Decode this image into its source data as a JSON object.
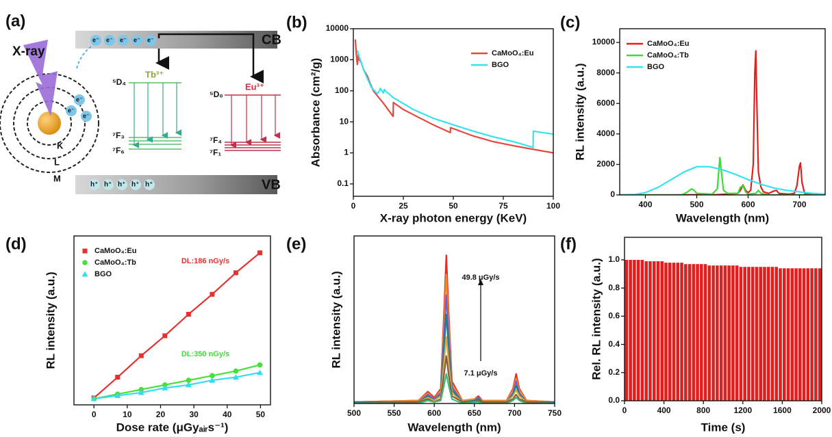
{
  "diagram": {
    "panel_label": "(a)",
    "xray_label": "X-ray",
    "cb_label": "CB",
    "vb_label": "VB",
    "electrons": [
      "e⁻",
      "e⁻",
      "e⁻",
      "e⁻",
      "e⁻"
    ],
    "atom_electrons": [
      "e⁻",
      "e⁻",
      "e⁻"
    ],
    "holes": [
      "h⁺",
      "h⁺",
      "h⁺",
      "h⁺",
      "h⁺"
    ],
    "tb_label": "Tb³⁺",
    "eu_label": "Eu³⁺",
    "tb_levels": [
      "⁵D₄",
      "⁷F₃",
      "⁷F₆"
    ],
    "eu_levels": [
      "⁵D₀",
      "⁷F₄",
      "⁷F₁"
    ],
    "shells": [
      "K",
      "L",
      "M"
    ]
  },
  "chart_data": [
    {
      "type": "line",
      "panel_label": "(b)",
      "x_label": "X-ray photon energy (KeV)",
      "y_label": "Absorbance (cm²/g)",
      "log_y": true,
      "xlim": [
        0,
        100
      ],
      "xticks": [
        0,
        25,
        50,
        75,
        100
      ],
      "ylim": [
        0.04,
        10000
      ],
      "yticks": [
        0.1,
        1,
        10,
        100,
        1000,
        10000
      ],
      "legend": "upper right",
      "series": [
        {
          "name": "CaMoO₄:Eu",
          "color": "#e5483f",
          "x": [
            1,
            1.5,
            2,
            2.5,
            3,
            4,
            5,
            7,
            8,
            10,
            15,
            19.9,
            20,
            25,
            30,
            40,
            48.5,
            48.6,
            60,
            70,
            80,
            90,
            100
          ],
          "values": [
            4500,
            1500,
            700,
            1500,
            1000,
            800,
            500,
            300,
            200,
            100,
            40,
            15,
            42,
            25,
            17,
            8,
            4.5,
            6.5,
            3.5,
            2.3,
            1.7,
            1.3,
            1.0
          ]
        },
        {
          "name": "BGO",
          "color": "#35e2ef",
          "x": [
            2,
            3,
            4,
            5,
            7,
            9,
            12,
            13,
            13.5,
            15,
            15.5,
            16,
            20,
            30,
            40,
            50,
            60,
            70,
            80,
            89.9,
            90,
            100
          ],
          "values": [
            2000,
            1200,
            800,
            500,
            250,
            130,
            80,
            100,
            120,
            85,
            110,
            100,
            60,
            25,
            13,
            8,
            5,
            3.3,
            2.3,
            1.5,
            5,
            4
          ]
        }
      ]
    },
    {
      "type": "line",
      "panel_label": "(c)",
      "x_label": "Wavelength (nm)",
      "y_label": "RL intensity (a.u.)",
      "xlim": [
        350,
        750
      ],
      "xticks": [
        400,
        500,
        600,
        700
      ],
      "ylim": [
        0,
        10900
      ],
      "yticks": [
        0,
        2000,
        4000,
        6000,
        8000,
        10000
      ],
      "legend": "upper left",
      "series": [
        {
          "name": "CaMoO₄:Eu",
          "color": "#e01f1f",
          "x": [
            350,
            380,
            400,
            450,
            500,
            540,
            560,
            580,
            585,
            590,
            595,
            600,
            605,
            610,
            613,
            615,
            617,
            620,
            625,
            630,
            640,
            650,
            655,
            660,
            680,
            690,
            695,
            700,
            702,
            705,
            710,
            750
          ],
          "values": [
            0,
            0,
            0,
            0,
            10,
            20,
            50,
            100,
            300,
            650,
            300,
            150,
            300,
            2000,
            8000,
            9450,
            6000,
            1500,
            500,
            200,
            100,
            250,
            300,
            100,
            50,
            100,
            600,
            1900,
            2100,
            800,
            100,
            0
          ]
        },
        {
          "name": "CaMoO₄:Tb",
          "color": "#3fd93a",
          "x": [
            350,
            470,
            480,
            490,
            495,
            500,
            530,
            540,
            545,
            548,
            552,
            560,
            580,
            585,
            590,
            595,
            600,
            615,
            620,
            625,
            640,
            750
          ],
          "values": [
            0,
            0,
            150,
            400,
            300,
            100,
            50,
            400,
            2450,
            1500,
            300,
            100,
            100,
            500,
            600,
            200,
            50,
            100,
            300,
            100,
            0,
            0
          ]
        },
        {
          "name": "BGO",
          "color": "#35e2ef",
          "x": [
            350,
            380,
            400,
            425,
            450,
            475,
            500,
            525,
            550,
            575,
            600,
            625,
            650,
            675,
            700,
            725,
            750
          ],
          "values": [
            0,
            30,
            150,
            500,
            1000,
            1500,
            1850,
            1850,
            1650,
            1350,
            1000,
            700,
            450,
            300,
            200,
            100,
            50
          ]
        }
      ]
    },
    {
      "type": "line",
      "panel_label": "(d)",
      "x_label": "Dose rate (μGyₐᵢᵣs⁻¹)",
      "y_label": "RL intensity (a.u.)",
      "xlim": [
        -6,
        53
      ],
      "xticks": [
        0,
        10,
        20,
        30,
        40,
        50
      ],
      "ylim": [
        0,
        1.1
      ],
      "legend": "upper left",
      "x": [
        0,
        7.1,
        14.2,
        21.3,
        28.4,
        35.5,
        42.6,
        49.8
      ],
      "series": [
        {
          "name": "CaMoO₄:Eu",
          "color": "#e5312f",
          "marker": "square",
          "values": [
            0.045,
            0.18,
            0.32,
            0.45,
            0.59,
            0.72,
            0.86,
            0.99
          ]
        },
        {
          "name": "CaMoO₄:Tb",
          "color": "#45e03a",
          "marker": "circle",
          "values": [
            0.04,
            0.07,
            0.1,
            0.13,
            0.16,
            0.19,
            0.22,
            0.26
          ]
        },
        {
          "name": "BGO",
          "color": "#35dcef",
          "marker": "triangle",
          "values": [
            0.04,
            0.06,
            0.08,
            0.11,
            0.13,
            0.16,
            0.18,
            0.21
          ]
        }
      ],
      "annotations": [
        {
          "text": "DL:186 nGy/s",
          "color": "#e5312f"
        },
        {
          "text": "DL:350 nGy/s",
          "color": "#45d83a"
        }
      ]
    },
    {
      "type": "line",
      "panel_label": "(e)",
      "x_label": "Wavelength (nm)",
      "y_label": "RL intensity (a.u.)",
      "xlim": [
        500,
        750
      ],
      "xticks": [
        500,
        550,
        600,
        650,
        700,
        750
      ],
      "ylim": [
        0,
        1.13
      ],
      "x": [
        500,
        580,
        592,
        600,
        608,
        612,
        615,
        618,
        622,
        635,
        650,
        655,
        660,
        690,
        698,
        702,
        706,
        715,
        750
      ],
      "series": [
        {
          "color": "#e0302a",
          "values": [
            0.01,
            0.02,
            0.08,
            0.04,
            0.1,
            0.6,
            1.0,
            0.6,
            0.15,
            0.02,
            0.03,
            0.05,
            0.02,
            0.02,
            0.1,
            0.2,
            0.1,
            0.02,
            0.01
          ]
        },
        {
          "color": "#f08a2a",
          "values": [
            0.01,
            0.02,
            0.07,
            0.03,
            0.09,
            0.52,
            0.87,
            0.52,
            0.13,
            0.02,
            0.03,
            0.04,
            0.02,
            0.02,
            0.09,
            0.17,
            0.09,
            0.02,
            0.01
          ]
        },
        {
          "color": "#7a5cc8",
          "values": [
            0.01,
            0.01,
            0.06,
            0.03,
            0.07,
            0.44,
            0.73,
            0.44,
            0.11,
            0.01,
            0.02,
            0.04,
            0.01,
            0.01,
            0.07,
            0.15,
            0.07,
            0.01,
            0.01
          ]
        },
        {
          "color": "#1f7f8a",
          "values": [
            0.01,
            0.01,
            0.05,
            0.02,
            0.06,
            0.36,
            0.6,
            0.36,
            0.09,
            0.01,
            0.02,
            0.03,
            0.01,
            0.01,
            0.06,
            0.12,
            0.06,
            0.01,
            0.01
          ]
        },
        {
          "color": "#d9a84a",
          "values": [
            0,
            0.01,
            0.04,
            0.02,
            0.05,
            0.27,
            0.45,
            0.27,
            0.07,
            0.01,
            0.01,
            0.02,
            0.01,
            0.01,
            0.05,
            0.09,
            0.05,
            0.01,
            0
          ]
        },
        {
          "color": "#8a5a3a",
          "values": [
            0,
            0.01,
            0.03,
            0.01,
            0.03,
            0.19,
            0.32,
            0.19,
            0.05,
            0.01,
            0.01,
            0.02,
            0.01,
            0.01,
            0.03,
            0.06,
            0.03,
            0.01,
            0
          ]
        },
        {
          "color": "#3cb878",
          "values": [
            0,
            0,
            0.02,
            0.01,
            0.02,
            0.12,
            0.2,
            0.12,
            0.03,
            0,
            0.01,
            0.01,
            0,
            0,
            0.02,
            0.04,
            0.02,
            0,
            0
          ]
        }
      ],
      "annotations": [
        {
          "text": "49.8 μGy/s",
          "color": "#111"
        },
        {
          "text": "7.1 μGy/s",
          "color": "#111"
        }
      ]
    },
    {
      "type": "bar",
      "panel_label": "(f)",
      "x_label": "Time (s)",
      "y_label": "Rel. RL intensity (a.u.)",
      "color": "#e01f1f",
      "xlim": [
        0,
        2000
      ],
      "xticks": [
        0,
        400,
        800,
        1200,
        1600,
        2000
      ],
      "ylim": [
        0,
        1.16
      ],
      "yticks": [
        {
          "value": 0,
          "label": "0.0"
        },
        0.2,
        0.4,
        0.6,
        0.8,
        {
          "value": 1,
          "label": "1.0"
        }
      ],
      "x": [
        20,
        60,
        100,
        140,
        180,
        220,
        260,
        300,
        340,
        380,
        420,
        460,
        500,
        540,
        580,
        620,
        660,
        700,
        740,
        780,
        820,
        860,
        900,
        940,
        980,
        1020,
        1060,
        1100,
        1140,
        1180,
        1220,
        1260,
        1300,
        1340,
        1380,
        1420,
        1460,
        1500,
        1540,
        1580,
        1620,
        1660,
        1700,
        1740,
        1780,
        1820,
        1860,
        1900,
        1940,
        1980
      ],
      "values": [
        1.0,
        1.0,
        1.0,
        1.0,
        1.0,
        0.99,
        0.99,
        0.99,
        0.99,
        0.99,
        0.98,
        0.98,
        0.98,
        0.98,
        0.98,
        0.97,
        0.97,
        0.97,
        0.97,
        0.97,
        0.97,
        0.96,
        0.96,
        0.96,
        0.96,
        0.96,
        0.96,
        0.96,
        0.96,
        0.95,
        0.95,
        0.95,
        0.95,
        0.95,
        0.95,
        0.95,
        0.95,
        0.95,
        0.95,
        0.94,
        0.94,
        0.94,
        0.94,
        0.94,
        0.94,
        0.94,
        0.94,
        0.94,
        0.94,
        0.94
      ]
    }
  ]
}
